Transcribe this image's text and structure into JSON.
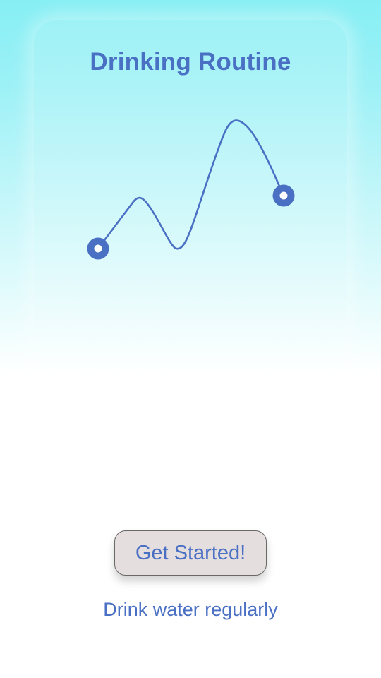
{
  "screen": {
    "title": "Drinking Routine",
    "subtitle": "Drink water regularly"
  },
  "actions": {
    "get_started_label": "Get Started!"
  },
  "colors": {
    "accent": "#4a70c4",
    "button_bg": "#e5dede",
    "sky_top": "#86eff4"
  },
  "icons": {
    "start_marker": "ring-marker-icon",
    "end_marker": "ring-marker-icon"
  }
}
